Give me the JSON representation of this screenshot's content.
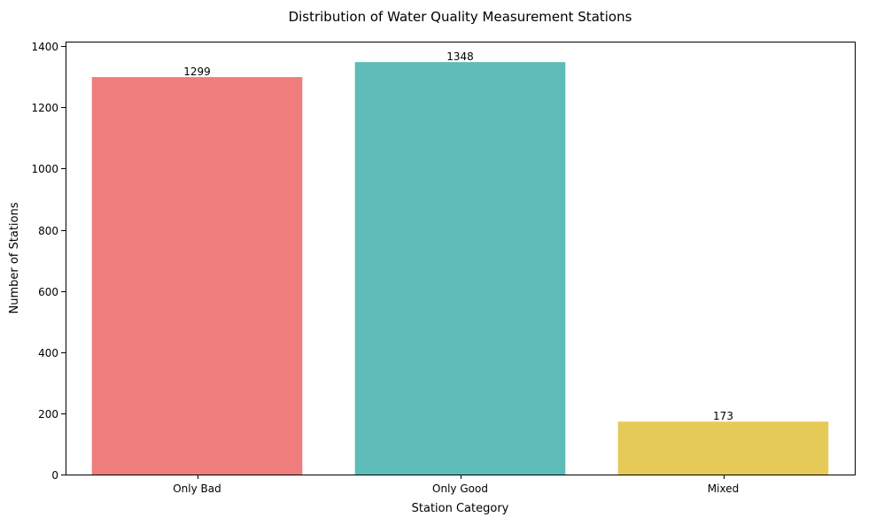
{
  "chart_data": {
    "type": "bar",
    "title": "Distribution of Water Quality Measurement Stations",
    "xlabel": "Station Category",
    "ylabel": "Number of Stations",
    "categories": [
      "Only Bad",
      "Only Good",
      "Mixed"
    ],
    "values": [
      1299,
      1348,
      173
    ],
    "colors": [
      "#ee7d7b",
      "#5ebcb8",
      "#e6ca58"
    ],
    "ylim": [
      0,
      1415
    ],
    "yticks": [
      0,
      200,
      400,
      600,
      800,
      1000,
      1200,
      1400
    ],
    "grid": false,
    "legend": "none",
    "data_labels": true
  }
}
